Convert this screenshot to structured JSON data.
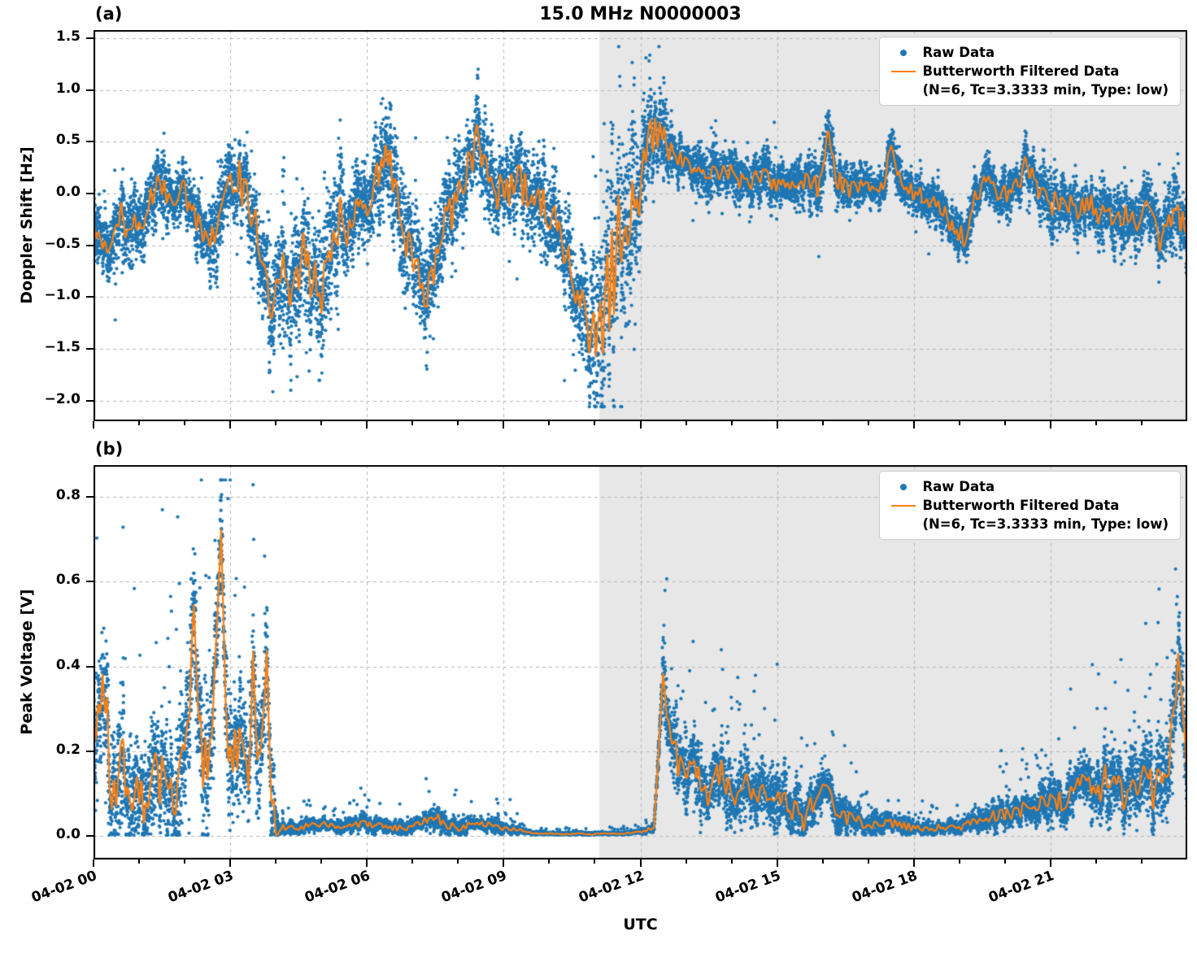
{
  "chart_data": [
    {
      "type": "scatter",
      "panel_label": "(a)",
      "title": "15.0 MHz N0000003",
      "ylabel": "Doppler Shift [Hz]",
      "ylim": [
        -2.2,
        1.58
      ],
      "yticks": [
        1.5,
        1.0,
        0.5,
        0.0,
        -0.5,
        -1.0,
        -1.5,
        -2.0
      ],
      "xlim_hours": [
        0,
        24
      ],
      "xtick_hours": [
        0,
        3,
        6,
        9,
        12,
        15,
        18,
        21
      ],
      "xtick_labels": [
        "04-02 00",
        "04-02 03",
        "04-02 06",
        "04-02 09",
        "04-02 12",
        "04-02 15",
        "04-02 18",
        "04-02 21"
      ],
      "grid": true,
      "shaded_region_hours": [
        11.1,
        24
      ],
      "shade_color": "#e7e7e7",
      "grid_color": "#b5b5b5",
      "colors": {
        "raw": "#1f77b4",
        "filtered": "#ff7f0e"
      },
      "legend": {
        "position": "upper right",
        "raw_label": "Raw Data",
        "filtered_label": "Butterworth Filtered Data",
        "filtered_sublabel": "(N=6, Tc=3.3333 min, Type: low)"
      },
      "filtered_series": {
        "name": "Butterworth Filtered Data",
        "x_hours": [
          0,
          0.3,
          0.6,
          0.9,
          1.2,
          1.5,
          1.7,
          2.0,
          2.2,
          2.5,
          2.8,
          3.0,
          3.2,
          3.4,
          3.6,
          3.8,
          4.0,
          4.2,
          4.4,
          4.6,
          4.8,
          5.0,
          5.2,
          5.4,
          5.6,
          5.8,
          6.0,
          6.2,
          6.4,
          6.6,
          6.8,
          7.0,
          7.2,
          7.4,
          7.6,
          7.8,
          8.0,
          8.2,
          8.4,
          8.6,
          8.8,
          9.0,
          9.2,
          9.4,
          9.6,
          9.8,
          10.0,
          10.3,
          10.6,
          10.9,
          11.1,
          11.3,
          11.5,
          11.7,
          11.9,
          12.1,
          12.3,
          12.5,
          12.7,
          13.0,
          13.3,
          13.6,
          14.0,
          14.3,
          14.6,
          15.0,
          15.3,
          15.6,
          15.9,
          16.1,
          16.3,
          16.5,
          16.8,
          17.0,
          17.3,
          17.5,
          17.7,
          18.0,
          18.3,
          18.6,
          18.9,
          19.1,
          19.3,
          19.6,
          19.9,
          20.2,
          20.5,
          20.7,
          21.0,
          21.3,
          21.6,
          21.9,
          22.2,
          22.5,
          22.8,
          23.1,
          23.4,
          23.7,
          24.0
        ],
        "y": [
          -0.3,
          -0.45,
          -0.25,
          -0.35,
          -0.1,
          0.1,
          -0.1,
          0.05,
          -0.25,
          -0.45,
          -0.2,
          0.1,
          0.15,
          -0.1,
          -0.25,
          -0.95,
          -1.05,
          -0.8,
          -1.0,
          -0.6,
          -0.85,
          -1.0,
          -0.6,
          -0.25,
          -0.4,
          -0.15,
          -0.2,
          0.1,
          0.45,
          0.1,
          -0.4,
          -0.55,
          -0.9,
          -0.85,
          -0.4,
          -0.2,
          -0.1,
          0.2,
          0.5,
          0.3,
          0.05,
          0.0,
          0.1,
          0.05,
          -0.05,
          -0.1,
          -0.15,
          -0.5,
          -0.9,
          -1.25,
          -1.3,
          -0.95,
          -0.5,
          -0.2,
          0.0,
          0.3,
          0.62,
          0.5,
          0.35,
          0.28,
          0.22,
          0.25,
          0.18,
          0.12,
          0.15,
          0.1,
          0.08,
          0.12,
          0.05,
          0.55,
          0.15,
          0.05,
          0.08,
          0.1,
          0.05,
          0.45,
          0.1,
          0.0,
          -0.05,
          -0.1,
          -0.4,
          -0.45,
          -0.1,
          0.1,
          0.0,
          0.05,
          0.3,
          0.1,
          -0.1,
          -0.05,
          -0.2,
          -0.1,
          -0.25,
          -0.15,
          -0.3,
          -0.2,
          -0.45,
          -0.25,
          -0.3
        ]
      },
      "raw_noise_envelope": {
        "x_hours": [
          0,
          1,
          2,
          3,
          3.6,
          4.2,
          5,
          5.5,
          6,
          7,
          8,
          9,
          10,
          10.6,
          11.0,
          11.4,
          11.8,
          12.2,
          12.6,
          13,
          14,
          15,
          16,
          17,
          18,
          19,
          20,
          21,
          22,
          23,
          24
        ],
        "amplitude": [
          0.25,
          0.25,
          0.22,
          0.25,
          0.35,
          0.45,
          0.42,
          0.35,
          0.3,
          0.35,
          0.3,
          0.3,
          0.3,
          0.35,
          0.6,
          0.75,
          0.65,
          0.35,
          0.2,
          0.15,
          0.15,
          0.15,
          0.18,
          0.12,
          0.12,
          0.18,
          0.15,
          0.18,
          0.18,
          0.2,
          0.24
        ]
      },
      "raw_points_per_hour": 560,
      "scatter_spread": 1.5,
      "line_wiggle": 0.7,
      "spike_p": 0.004,
      "spike_mult": 2.2,
      "nonneg": false,
      "clamp": [
        -2.06,
        1.42
      ]
    },
    {
      "type": "scatter",
      "panel_label": "(b)",
      "ylabel": "Peak Voltage [V]",
      "xlabel": "UTC",
      "ylim": [
        -0.055,
        0.875
      ],
      "yticks": [
        0.8,
        0.6,
        0.4,
        0.2,
        0.0
      ],
      "xlim_hours": [
        0,
        24
      ],
      "xtick_hours": [
        0,
        3,
        6,
        9,
        12,
        15,
        18,
        21
      ],
      "xtick_labels": [
        "04-02 00",
        "04-02 03",
        "04-02 06",
        "04-02 09",
        "04-02 12",
        "04-02 15",
        "04-02 18",
        "04-02 21"
      ],
      "grid": true,
      "shaded_region_hours": [
        11.1,
        24
      ],
      "shade_color": "#e7e7e7",
      "grid_color": "#b5b5b5",
      "colors": {
        "raw": "#1f77b4",
        "filtered": "#ff7f0e"
      },
      "legend": {
        "position": "upper right",
        "raw_label": "Raw Data",
        "filtered_label": "Butterworth Filtered Data",
        "filtered_sublabel": "(N=6, Tc=3.3333 min, Type: low)"
      },
      "filtered_series": {
        "name": "Butterworth Filtered Data",
        "x_hours": [
          0,
          0.2,
          0.4,
          0.6,
          0.8,
          1.0,
          1.2,
          1.4,
          1.6,
          1.8,
          2.0,
          2.2,
          2.4,
          2.6,
          2.8,
          2.9,
          3.0,
          3.2,
          3.4,
          3.5,
          3.6,
          3.8,
          3.9,
          4.0,
          4.5,
          5.0,
          5.5,
          6.0,
          6.5,
          7.0,
          7.3,
          7.5,
          7.7,
          8.0,
          8.5,
          9.0,
          9.5,
          10.0,
          10.5,
          11.0,
          11.5,
          12.0,
          12.3,
          12.5,
          12.7,
          13.0,
          13.2,
          13.5,
          13.8,
          14.0,
          14.3,
          14.5,
          15.0,
          15.3,
          15.6,
          16.0,
          16.3,
          16.5,
          17.0,
          17.5,
          18.0,
          18.5,
          19.0,
          19.5,
          20.0,
          20.5,
          21.0,
          21.3,
          21.6,
          22.0,
          22.3,
          22.6,
          23.0,
          23.3,
          23.6,
          23.8,
          24.0
        ],
        "y": [
          0.22,
          0.38,
          0.12,
          0.18,
          0.08,
          0.12,
          0.06,
          0.15,
          0.1,
          0.12,
          0.2,
          0.5,
          0.15,
          0.25,
          0.7,
          0.3,
          0.18,
          0.25,
          0.15,
          0.5,
          0.2,
          0.4,
          0.1,
          0.02,
          0.02,
          0.03,
          0.02,
          0.03,
          0.02,
          0.02,
          0.04,
          0.05,
          0.03,
          0.02,
          0.03,
          0.02,
          0.01,
          0.005,
          0.005,
          0.005,
          0.005,
          0.01,
          0.02,
          0.36,
          0.2,
          0.12,
          0.18,
          0.1,
          0.15,
          0.1,
          0.15,
          0.08,
          0.1,
          0.06,
          0.04,
          0.12,
          0.06,
          0.04,
          0.03,
          0.03,
          0.02,
          0.02,
          0.02,
          0.04,
          0.05,
          0.07,
          0.1,
          0.08,
          0.13,
          0.1,
          0.15,
          0.1,
          0.14,
          0.1,
          0.16,
          0.4,
          0.15
        ]
      },
      "raw_noise_envelope": {
        "x_hours": [
          0,
          0.5,
          1,
          1.5,
          2,
          2.5,
          3,
          3.5,
          3.9,
          4.1,
          5,
          6,
          7,
          7.5,
          8,
          9,
          9.6,
          10,
          11,
          12,
          12.35,
          12.5,
          13,
          14,
          15,
          16,
          17,
          18,
          19,
          19.5,
          20,
          20.5,
          21,
          22,
          23,
          23.5,
          24
        ],
        "amplitude": [
          0.1,
          0.12,
          0.09,
          0.1,
          0.11,
          0.13,
          0.12,
          0.12,
          0.1,
          0.012,
          0.012,
          0.012,
          0.012,
          0.02,
          0.012,
          0.01,
          0.004,
          0.003,
          0.003,
          0.003,
          0.01,
          0.08,
          0.06,
          0.06,
          0.05,
          0.035,
          0.02,
          0.012,
          0.012,
          0.02,
          0.025,
          0.03,
          0.04,
          0.05,
          0.07,
          0.09,
          0.07
        ]
      },
      "raw_points_per_hour": 560,
      "scatter_spread": 1.4,
      "line_wiggle": 0.7,
      "spike_p": 0.02,
      "spike_mult": 4,
      "nonneg": true,
      "clamp": [
        0,
        0.84
      ]
    }
  ]
}
